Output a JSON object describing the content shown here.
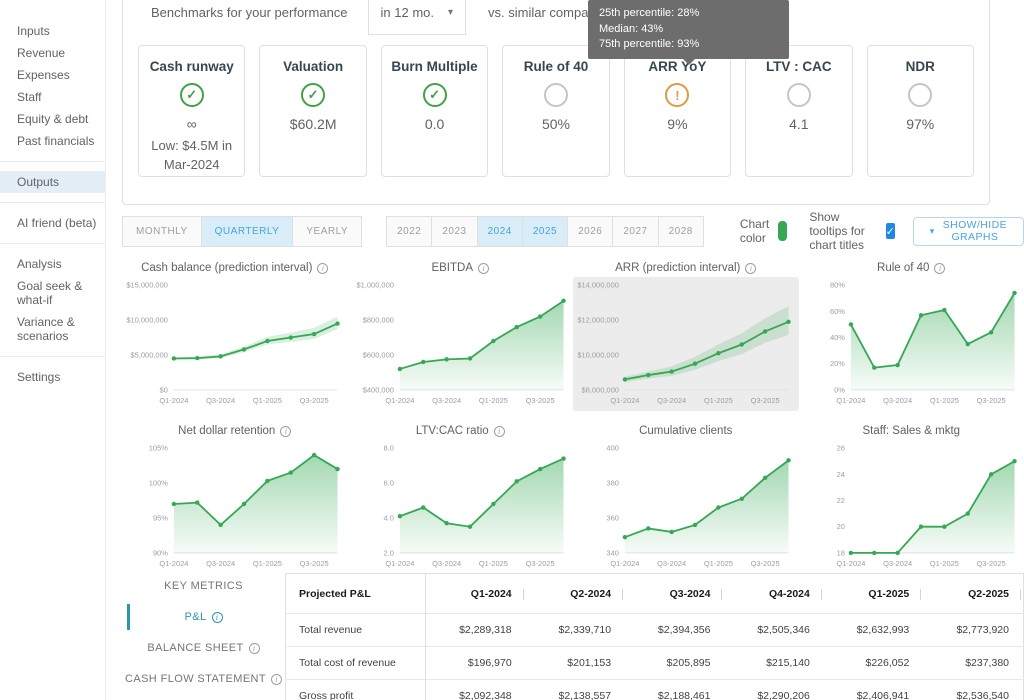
{
  "sidebar": {
    "groups": [
      {
        "items": [
          {
            "label": "Inputs"
          },
          {
            "label": "Revenue"
          },
          {
            "label": "Expenses"
          },
          {
            "label": "Staff"
          },
          {
            "label": "Equity & debt"
          },
          {
            "label": "Past financials"
          }
        ]
      },
      {
        "items": [
          {
            "label": "Outputs",
            "active": true
          }
        ]
      },
      {
        "items": [
          {
            "label": "AI friend (beta)"
          }
        ]
      },
      {
        "items": [
          {
            "label": "Analysis"
          },
          {
            "label": "Goal seek & what-if"
          },
          {
            "label": "Variance & scenarios"
          }
        ]
      },
      {
        "items": [
          {
            "label": "Settings"
          }
        ]
      }
    ]
  },
  "benchmarks": {
    "title": "Benchmarks for your performance",
    "period_dropdown": "in 12 mo.",
    "suffix": "vs. similar companies",
    "tooltip": {
      "lines": [
        "25th percentile: 28%",
        "Median: 43%",
        "75th percentile: 93%"
      ]
    },
    "cards": [
      {
        "title": "Cash runway",
        "status": "good",
        "value": "∞",
        "note": "Low: $4.5M in Mar-2024"
      },
      {
        "title": "Valuation",
        "status": "good",
        "value": "$60.2M"
      },
      {
        "title": "Burn Multiple",
        "status": "good",
        "value": "0.0"
      },
      {
        "title": "Rule of 40",
        "status": "neutral",
        "value": "50%"
      },
      {
        "title": "ARR YoY",
        "status": "warning",
        "value": "9%"
      },
      {
        "title": "LTV : CAC",
        "status": "neutral",
        "value": "4.1"
      },
      {
        "title": "NDR",
        "status": "neutral",
        "value": "97%"
      }
    ]
  },
  "controls": {
    "period_tabs": [
      {
        "label": "MONTHLY"
      },
      {
        "label": "QUARTERLY",
        "active": true
      },
      {
        "label": "YEARLY"
      }
    ],
    "year_tabs": [
      {
        "label": "2022"
      },
      {
        "label": "2023"
      },
      {
        "label": "2024",
        "active": true
      },
      {
        "label": "2025",
        "active": true
      },
      {
        "label": "2026"
      },
      {
        "label": "2027"
      },
      {
        "label": "2028"
      }
    ],
    "chart_color_label": "Chart color",
    "chart_color": "#34a853",
    "tooltips_label": "Show tooltips for chart titles",
    "tooltips_checked": true,
    "show_hide_button": "SHOW/HIDE GRAPHS"
  },
  "chart_data": [
    {
      "type": "line",
      "title": "Cash balance (prediction interval)",
      "info_icon": true,
      "highlight": false,
      "x": [
        "Q1-2024",
        "Q2-2024",
        "Q3-2024",
        "Q4-2024",
        "Q1-2025",
        "Q2-2025",
        "Q3-2025",
        "Q4-2025"
      ],
      "x_tick_labels": [
        "Q1-2024",
        "Q3-2024",
        "Q1-2025",
        "Q3-2025"
      ],
      "values": [
        4500000,
        4550000,
        4800000,
        5800000,
        7000000,
        7500000,
        8000000,
        9500000
      ],
      "band_upper": [
        4650000,
        4750000,
        5100000,
        6200000,
        7600000,
        8200000,
        8900000,
        10500000
      ],
      "band_lower": [
        4350000,
        4350000,
        4550000,
        5400000,
        6500000,
        6900000,
        7300000,
        8700000
      ],
      "ylim": [
        0,
        15000000
      ],
      "ytick_values": [
        0,
        5000000,
        10000000,
        15000000
      ],
      "ytick_labels": [
        "$0",
        "$5,000,000",
        "$10,000,000",
        "$15,000,000"
      ]
    },
    {
      "type": "area",
      "title": "EBITDA",
      "info_icon": true,
      "highlight": false,
      "x": [
        "Q1-2024",
        "Q2-2024",
        "Q3-2024",
        "Q4-2024",
        "Q1-2025",
        "Q2-2025",
        "Q3-2025",
        "Q4-2025"
      ],
      "x_tick_labels": [
        "Q1-2024",
        "Q3-2024",
        "Q1-2025",
        "Q3-2025"
      ],
      "values": [
        520000,
        560000,
        575000,
        580000,
        680000,
        760000,
        820000,
        910000
      ],
      "ylim": [
        400000,
        1000000
      ],
      "ytick_values": [
        400000,
        600000,
        800000,
        1000000
      ],
      "ytick_labels": [
        "$400,000",
        "$600,000",
        "$800,000",
        "$1,000,000"
      ]
    },
    {
      "type": "line",
      "title": "ARR (prediction interval)",
      "info_icon": true,
      "highlight": true,
      "x": [
        "Q1-2024",
        "Q2-2024",
        "Q3-2024",
        "Q4-2024",
        "Q1-2025",
        "Q2-2025",
        "Q3-2025",
        "Q4-2025"
      ],
      "x_tick_labels": [
        "Q1-2024",
        "Q3-2024",
        "Q1-2025",
        "Q3-2025"
      ],
      "values": [
        8600000,
        8850000,
        9050000,
        9500000,
        10100000,
        10600000,
        11350000,
        11900000
      ],
      "band_upper": [
        8750000,
        9050000,
        9350000,
        9900000,
        10600000,
        11250000,
        12100000,
        12800000
      ],
      "band_lower": [
        8450000,
        8650000,
        8800000,
        9150000,
        9650000,
        10050000,
        10700000,
        11150000
      ],
      "ylim": [
        8000000,
        14000000
      ],
      "ytick_values": [
        8000000,
        10000000,
        12000000,
        14000000
      ],
      "ytick_labels": [
        "$8,000,000",
        "$10,000,000",
        "$12,000,000",
        "$14,000,000"
      ]
    },
    {
      "type": "area",
      "title": "Rule of 40",
      "info_icon": true,
      "highlight": false,
      "x": [
        "Q1-2024",
        "Q2-2024",
        "Q3-2024",
        "Q4-2024",
        "Q1-2025",
        "Q2-2025",
        "Q3-2025",
        "Q4-2025"
      ],
      "x_tick_labels": [
        "Q1-2024",
        "Q3-2024",
        "Q1-2025",
        "Q3-2025"
      ],
      "values": [
        50,
        17,
        19,
        57,
        61,
        35,
        44,
        74
      ],
      "ylim": [
        0,
        80
      ],
      "ytick_values": [
        0,
        20,
        40,
        60,
        80
      ],
      "ytick_labels": [
        "0%",
        "20%",
        "40%",
        "60%",
        "80%"
      ]
    },
    {
      "type": "area",
      "title": "Net dollar retention",
      "info_icon": true,
      "highlight": false,
      "x": [
        "Q1-2024",
        "Q2-2024",
        "Q3-2024",
        "Q4-2024",
        "Q1-2025",
        "Q2-2025",
        "Q3-2025",
        "Q4-2025"
      ],
      "x_tick_labels": [
        "Q1-2024",
        "Q3-2024",
        "Q1-2025",
        "Q3-2025"
      ],
      "values": [
        97,
        97.2,
        94,
        97,
        100.3,
        101.5,
        104,
        102
      ],
      "ylim": [
        90,
        105
      ],
      "ytick_values": [
        90,
        95,
        100,
        105
      ],
      "ytick_labels": [
        "90%",
        "95%",
        "100%",
        "105%"
      ]
    },
    {
      "type": "area",
      "title": "LTV:CAC ratio",
      "info_icon": true,
      "highlight": false,
      "x": [
        "Q1-2024",
        "Q2-2024",
        "Q3-2024",
        "Q4-2024",
        "Q1-2025",
        "Q2-2025",
        "Q3-2025",
        "Q4-2025"
      ],
      "x_tick_labels": [
        "Q1-2024",
        "Q3-2024",
        "Q1-2025",
        "Q3-2025"
      ],
      "values": [
        4.1,
        4.6,
        3.7,
        3.5,
        4.8,
        6.1,
        6.8,
        7.4
      ],
      "ylim": [
        2,
        8
      ],
      "ytick_values": [
        2,
        4,
        6,
        8
      ],
      "ytick_labels": [
        "2.0",
        "4.0",
        "6.0",
        "8.0"
      ]
    },
    {
      "type": "area",
      "title": "Cumulative clients",
      "info_icon": false,
      "highlight": false,
      "x": [
        "Q1-2024",
        "Q2-2024",
        "Q3-2024",
        "Q4-2024",
        "Q1-2025",
        "Q2-2025",
        "Q3-2025",
        "Q4-2025"
      ],
      "x_tick_labels": [
        "Q1-2024",
        "Q3-2024",
        "Q1-2025",
        "Q3-2025"
      ],
      "values": [
        349,
        354,
        352,
        356,
        366,
        371,
        383,
        393
      ],
      "ylim": [
        340,
        400
      ],
      "ytick_values": [
        340,
        360,
        380,
        400
      ],
      "ytick_labels": [
        "340",
        "360",
        "380",
        "400"
      ]
    },
    {
      "type": "area",
      "title": "Staff: Sales & mktg",
      "info_icon": false,
      "highlight": false,
      "x": [
        "Q1-2024",
        "Q2-2024",
        "Q3-2024",
        "Q4-2024",
        "Q1-2025",
        "Q2-2025",
        "Q3-2025",
        "Q4-2025"
      ],
      "x_tick_labels": [
        "Q1-2024",
        "Q3-2024",
        "Q1-2025",
        "Q3-2025"
      ],
      "values": [
        18,
        18,
        18,
        20,
        20,
        21,
        24,
        25
      ],
      "ylim": [
        18,
        26
      ],
      "ytick_values": [
        18,
        20,
        22,
        24,
        26
      ],
      "ytick_labels": [
        "18",
        "20",
        "22",
        "24",
        "26"
      ]
    }
  ],
  "statements": {
    "tabs": [
      {
        "label": "KEY METRICS",
        "active": false,
        "info": false
      },
      {
        "label": "P&L",
        "active": true,
        "info": true
      },
      {
        "label": "BALANCE SHEET",
        "active": false,
        "info": true
      },
      {
        "label": "CASH FLOW STATEMENT",
        "active": false,
        "info": true
      }
    ],
    "table": {
      "title": "Projected P&L",
      "columns": [
        "Q1-2024",
        "Q2-2024",
        "Q3-2024",
        "Q4-2024",
        "Q1-2025",
        "Q2-2025"
      ],
      "rows": [
        {
          "label": "Total revenue",
          "values": [
            "$2,289,318",
            "$2,339,710",
            "$2,394,356",
            "$2,505,346",
            "$2,632,993",
            "$2,773,920"
          ]
        },
        {
          "label": "Total cost of revenue",
          "values": [
            "$196,970",
            "$201,153",
            "$205,895",
            "$215,140",
            "$226,052",
            "$237,380"
          ]
        },
        {
          "label": "Gross profit",
          "values": [
            "$2,092,348",
            "$2,138,557",
            "$2,188,461",
            "$2,290,206",
            "$2,406,941",
            "$2,536,540"
          ]
        }
      ]
    }
  }
}
